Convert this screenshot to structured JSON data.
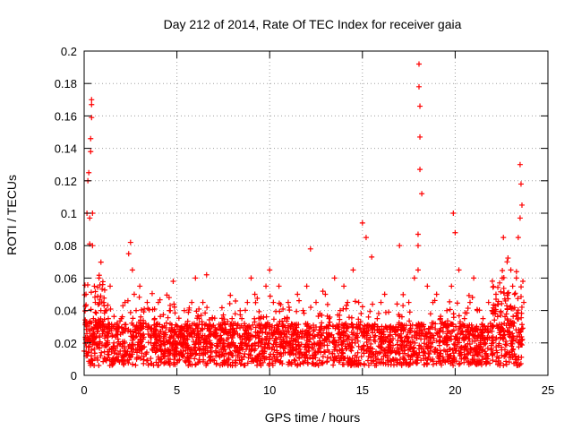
{
  "chart_data": {
    "type": "scatter",
    "title": "Day 212 of 2014, Rate Of TEC Index for receiver gaia",
    "xlabel": "GPS time / hours",
    "ylabel": "ROTI / TECUs",
    "xlim": [
      0,
      25
    ],
    "ylim": [
      0,
      0.2
    ],
    "xticks": [
      "0",
      "5",
      "10",
      "15",
      "20",
      "25"
    ],
    "yticks": [
      "0",
      "0.02",
      "0.04",
      "0.06",
      "0.08",
      "0.1",
      "0.12",
      "0.14",
      "0.16",
      "0.18",
      "0.2"
    ],
    "xtick_values": [
      0,
      5,
      10,
      15,
      20,
      25
    ],
    "ytick_values": [
      0,
      0.02,
      0.04,
      0.06,
      0.08,
      0.1,
      0.12,
      0.14,
      0.16,
      0.18,
      0.2
    ],
    "grid": true,
    "marker": "+",
    "series": [
      {
        "name": "ROTI",
        "color": "#ff0000",
        "x": [
          0.0,
          0.1,
          0.15,
          0.2,
          0.25,
          0.3,
          0.3,
          0.35,
          0.35,
          0.4,
          0.4,
          0.4,
          0.45,
          0.45,
          0.5,
          0.5,
          0.55,
          0.6,
          0.7,
          0.8,
          0.9,
          1.0,
          1.1,
          1.2,
          1.3,
          1.4,
          1.5,
          1.6,
          1.8,
          2.0,
          2.2,
          2.4,
          2.5,
          2.6,
          2.7,
          2.8,
          3.0,
          3.2,
          3.4,
          3.6,
          3.8,
          4.0,
          4.2,
          4.4,
          4.6,
          4.8,
          5.0,
          5.2,
          5.4,
          5.6,
          5.8,
          6.0,
          6.2,
          6.4,
          6.6,
          6.8,
          7.0,
          7.5,
          8.0,
          8.5,
          8.8,
          9.0,
          9.2,
          9.5,
          9.8,
          10.0,
          10.2,
          10.5,
          10.8,
          11.0,
          11.2,
          11.5,
          11.8,
          12.0,
          12.2,
          12.5,
          12.8,
          13.0,
          13.2,
          13.5,
          13.8,
          14.0,
          14.2,
          14.5,
          14.8,
          15.0,
          15.2,
          15.5,
          15.8,
          16.0,
          16.2,
          16.5,
          16.8,
          17.0,
          17.5,
          17.8,
          18.0,
          18.0,
          18.0,
          18.05,
          18.05,
          18.1,
          18.1,
          18.1,
          18.2,
          18.5,
          18.8,
          19.0,
          19.2,
          19.5,
          19.8,
          19.9,
          20.0,
          20.2,
          20.5,
          20.8,
          21.0,
          21.2,
          21.5,
          21.8,
          22.0,
          22.2,
          22.4,
          22.6,
          22.8,
          23.0,
          23.1,
          23.2,
          23.3,
          23.4,
          23.5,
          23.5,
          23.55,
          23.6,
          23.65,
          23.7
        ],
        "y": [
          0.015,
          0.05,
          0.1,
          0.12,
          0.125,
          0.081,
          0.097,
          0.146,
          0.138,
          0.17,
          0.167,
          0.159,
          0.1,
          0.08,
          0.035,
          0.02,
          0.055,
          0.045,
          0.03,
          0.06,
          0.04,
          0.056,
          0.03,
          0.02,
          0.035,
          0.055,
          0.03,
          0.02,
          0.025,
          0.035,
          0.045,
          0.075,
          0.082,
          0.065,
          0.05,
          0.04,
          0.055,
          0.03,
          0.045,
          0.02,
          0.035,
          0.045,
          0.03,
          0.025,
          0.04,
          0.058,
          0.03,
          0.025,
          0.04,
          0.028,
          0.045,
          0.06,
          0.035,
          0.045,
          0.062,
          0.03,
          0.025,
          0.02,
          0.025,
          0.035,
          0.045,
          0.06,
          0.05,
          0.035,
          0.055,
          0.065,
          0.045,
          0.055,
          0.035,
          0.045,
          0.025,
          0.05,
          0.04,
          0.055,
          0.078,
          0.045,
          0.03,
          0.05,
          0.035,
          0.06,
          0.04,
          0.055,
          0.045,
          0.065,
          0.045,
          0.094,
          0.085,
          0.073,
          0.035,
          0.045,
          0.05,
          0.025,
          0.03,
          0.08,
          0.045,
          0.06,
          0.065,
          0.08,
          0.087,
          0.192,
          0.178,
          0.166,
          0.147,
          0.127,
          0.112,
          0.055,
          0.045,
          0.05,
          0.035,
          0.03,
          0.055,
          0.1,
          0.088,
          0.065,
          0.035,
          0.045,
          0.06,
          0.04,
          0.035,
          0.045,
          0.04,
          0.05,
          0.057,
          0.085,
          0.07,
          0.065,
          0.055,
          0.05,
          0.06,
          0.085,
          0.097,
          0.13,
          0.118,
          0.105,
          0.058,
          0.045
        ]
      }
    ],
    "band_note": "dense background of points between 0.005 and ~0.04 across 0–23.6 h"
  }
}
